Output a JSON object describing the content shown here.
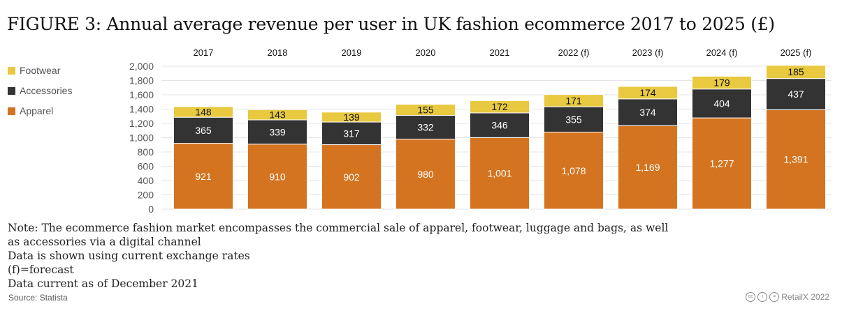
{
  "title": "FIGURE 3: Annual average revenue per user in UK fashion ecommerce 2017 to 2025 (£)",
  "notes": [
    "Note: The ecommerce fashion market encompasses the commercial sale of apparel, footwear, luggage and bags, as well",
    "as accessories via a digital channel",
    "Data is shown using current exchange rates",
    "(f)=forecast",
    "Data current as of December 2021"
  ],
  "source": "Source: Statista",
  "credit": "RetailX 2022",
  "chart_data": {
    "type": "bar",
    "stacked": true,
    "categories": [
      "2017",
      "2018",
      "2019",
      "2020",
      "2021",
      "2022 (f)",
      "2023 (f)",
      "2024 (f)",
      "2025 (f)"
    ],
    "series": [
      {
        "name": "Apparel",
        "color": "#d47420",
        "values": [
          921,
          910,
          902,
          980,
          1001,
          1078,
          1169,
          1277,
          1391
        ],
        "labels": [
          "921",
          "910",
          "902",
          "980",
          "1,001",
          "1,078",
          "1,169",
          "1,277",
          "1,391"
        ]
      },
      {
        "name": "Accessories",
        "color": "#333333",
        "values": [
          365,
          339,
          317,
          332,
          346,
          355,
          374,
          404,
          437
        ],
        "labels": [
          "365",
          "339",
          "317",
          "332",
          "346",
          "355",
          "374",
          "404",
          "437"
        ]
      },
      {
        "name": "Footwear",
        "color": "#e8c940",
        "values": [
          148,
          143,
          139,
          155,
          172,
          171,
          174,
          179,
          185
        ],
        "labels": [
          "148",
          "143",
          "139",
          "155",
          "172",
          "171",
          "174",
          "179",
          "185"
        ]
      }
    ],
    "ylim": [
      0,
      2000
    ],
    "yticks": [
      "0",
      "200",
      "400",
      "600",
      "800",
      "1,000",
      "1,200",
      "1,400",
      "1,600",
      "1,800",
      "2,000"
    ],
    "grid": true,
    "legend": "left",
    "legend_order": [
      "Footwear",
      "Accessories",
      "Apparel"
    ]
  }
}
